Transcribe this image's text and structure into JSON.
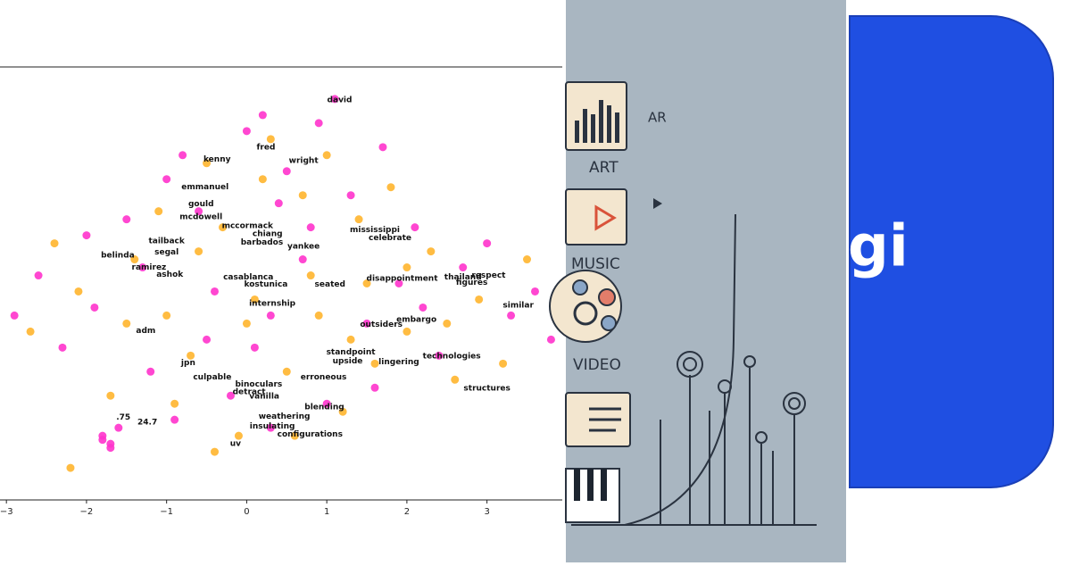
{
  "chart_data": {
    "type": "scatter",
    "xlim": [
      -3.08,
      3.94
    ],
    "ylim": [
      -3.2,
      2.2
    ],
    "xticks": [
      {
        "value": -3,
        "label": "−3"
      },
      {
        "value": -2,
        "label": "−2"
      },
      {
        "value": -1,
        "label": "−1"
      },
      0,
      1,
      2,
      3
    ],
    "series": [
      {
        "color": "#ff33cc",
        "x": [
          -2.9,
          -2.6,
          -2.3,
          -2.0,
          -1.8,
          -1.7,
          -1.6,
          -1.9,
          -1.5,
          -1.2,
          -1.0,
          -0.8,
          -0.6,
          -0.4,
          -0.2,
          0.0,
          0.2,
          0.3,
          0.5,
          0.7,
          0.9,
          1.1,
          1.3,
          1.5,
          1.7,
          1.9,
          2.1,
          2.4,
          2.7,
          3.0,
          3.3,
          3.6,
          3.8,
          -1.3,
          -0.5,
          0.4,
          1.0,
          1.6,
          2.2,
          -0.9,
          0.1,
          0.8,
          -1.8,
          -1.7,
          0.3
        ],
        "values": [
          -0.9,
          -0.4,
          -1.3,
          0.1,
          -2.4,
          -2.5,
          -2.3,
          -0.8,
          0.3,
          -1.6,
          0.8,
          1.1,
          0.4,
          -0.6,
          -1.9,
          1.4,
          1.6,
          -2.3,
          0.9,
          -0.2,
          1.5,
          1.8,
          0.6,
          -1.0,
          1.2,
          -0.5,
          0.2,
          -1.4,
          -0.3,
          0.0,
          -0.9,
          -0.6,
          -1.2,
          -0.3,
          -1.2,
          0.5,
          -2.0,
          -1.8,
          -0.8,
          -2.2,
          -1.3,
          0.2,
          -2.45,
          -2.55,
          -0.9
        ]
      },
      {
        "color": "#ffb52e",
        "x": [
          -2.7,
          -2.4,
          -2.1,
          -1.7,
          -1.4,
          -1.1,
          -0.9,
          -0.7,
          -0.5,
          -0.3,
          -0.1,
          0.1,
          0.3,
          0.5,
          0.7,
          0.9,
          1.2,
          1.4,
          1.6,
          1.8,
          2.0,
          2.3,
          2.6,
          2.9,
          3.2,
          3.5,
          -2.2,
          -1.0,
          0.0,
          1.0,
          2.0,
          -0.4,
          0.6,
          1.5,
          2.5,
          -1.5,
          0.2,
          1.3,
          -0.6,
          0.8
        ],
        "values": [
          -1.1,
          0.0,
          -0.6,
          -1.9,
          -0.2,
          0.4,
          -2.0,
          -1.4,
          1.0,
          0.2,
          -2.4,
          -0.7,
          1.3,
          -1.6,
          0.6,
          -0.9,
          -2.1,
          0.3,
          -1.5,
          0.7,
          -1.1,
          -0.1,
          -1.7,
          -0.7,
          -1.5,
          -0.2,
          -2.8,
          -0.9,
          -1.0,
          1.1,
          -0.3,
          -2.6,
          -2.4,
          -0.5,
          -1.0,
          -1.0,
          0.8,
          -1.2,
          -0.1,
          -0.4
        ]
      }
    ],
    "annotations": [
      {
        "text": "david",
        "x": 1.16,
        "y": 1.79
      },
      {
        "text": "fred",
        "x": 0.24,
        "y": 1.2
      },
      {
        "text": "kenny",
        "x": -0.37,
        "y": 1.05
      },
      {
        "text": "wright",
        "x": 0.71,
        "y": 1.03
      },
      {
        "text": "emmanuel",
        "x": -0.52,
        "y": 0.7
      },
      {
        "text": "gould",
        "x": -0.57,
        "y": 0.49
      },
      {
        "text": "mcdowell",
        "x": -0.57,
        "y": 0.33
      },
      {
        "text": "mccormack",
        "x": 0.01,
        "y": 0.22
      },
      {
        "text": "chiang",
        "x": 0.26,
        "y": 0.12
      },
      {
        "text": "barbados",
        "x": 0.19,
        "y": 0.01
      },
      {
        "text": "mississippi",
        "x": 1.6,
        "y": 0.17
      },
      {
        "text": "celebrate",
        "x": 1.79,
        "y": 0.07
      },
      {
        "text": "yankee",
        "x": 0.71,
        "y": -0.04
      },
      {
        "text": "tailback",
        "x": -1.0,
        "y": 0.03
      },
      {
        "text": "segal",
        "x": -1.0,
        "y": -0.11
      },
      {
        "text": "belinda",
        "x": -1.61,
        "y": -0.15
      },
      {
        "text": "ramirez",
        "x": -1.22,
        "y": -0.3
      },
      {
        "text": "ashok",
        "x": -0.96,
        "y": -0.39
      },
      {
        "text": "casablanca",
        "x": 0.02,
        "y": -0.42
      },
      {
        "text": "kostunica",
        "x": 0.24,
        "y": -0.51
      },
      {
        "text": "seated",
        "x": 1.04,
        "y": -0.51
      },
      {
        "text": "disappointment",
        "x": 1.94,
        "y": -0.44
      },
      {
        "text": "thailand",
        "x": 2.7,
        "y": -0.42
      },
      {
        "text": "respect",
        "x": 3.02,
        "y": -0.4
      },
      {
        "text": "figures",
        "x": 2.81,
        "y": -0.49
      },
      {
        "text": "similar",
        "x": 3.39,
        "y": -0.77
      },
      {
        "text": "internship",
        "x": 0.32,
        "y": -0.75
      },
      {
        "text": "outsiders",
        "x": 1.68,
        "y": -1.01
      },
      {
        "text": "embargo",
        "x": 2.12,
        "y": -0.95
      },
      {
        "text": "adm",
        "x": -1.26,
        "y": -1.09
      },
      {
        "text": "technologies",
        "x": 2.56,
        "y": -1.41
      },
      {
        "text": "lingering",
        "x": 1.9,
        "y": -1.48
      },
      {
        "text": "standpoint",
        "x": 1.3,
        "y": -1.36
      },
      {
        "text": "upside",
        "x": 1.26,
        "y": -1.47
      },
      {
        "text": "jpn",
        "x": -0.73,
        "y": -1.49
      },
      {
        "text": "culpable",
        "x": -0.43,
        "y": -1.67
      },
      {
        "text": "erroneous",
        "x": 0.96,
        "y": -1.67
      },
      {
        "text": "binoculars",
        "x": 0.15,
        "y": -1.76
      },
      {
        "text": "detract",
        "x": 0.03,
        "y": -1.85
      },
      {
        "text": "vanilla",
        "x": 0.22,
        "y": -1.91
      },
      {
        "text": "structures",
        "x": 3.0,
        "y": -1.81
      },
      {
        "text": "blending",
        "x": 0.97,
        "y": -2.04
      },
      {
        "text": "weathering",
        "x": 0.47,
        "y": -2.16
      },
      {
        "text": "insulating",
        "x": 0.32,
        "y": -2.28
      },
      {
        "text": "configurations",
        "x": 0.79,
        "y": -2.38
      },
      {
        "text": ".75",
        "x": -1.54,
        "y": -2.17
      },
      {
        "text": "24.7",
        "x": -1.24,
        "y": -2.23
      },
      {
        "text": "uv",
        "x": -0.14,
        "y": -2.5
      }
    ]
  },
  "illustration": {
    "labels": [
      "AR",
      "ART",
      "MUSIC",
      "VIDEO"
    ]
  },
  "banner": {
    "text": "gi"
  }
}
